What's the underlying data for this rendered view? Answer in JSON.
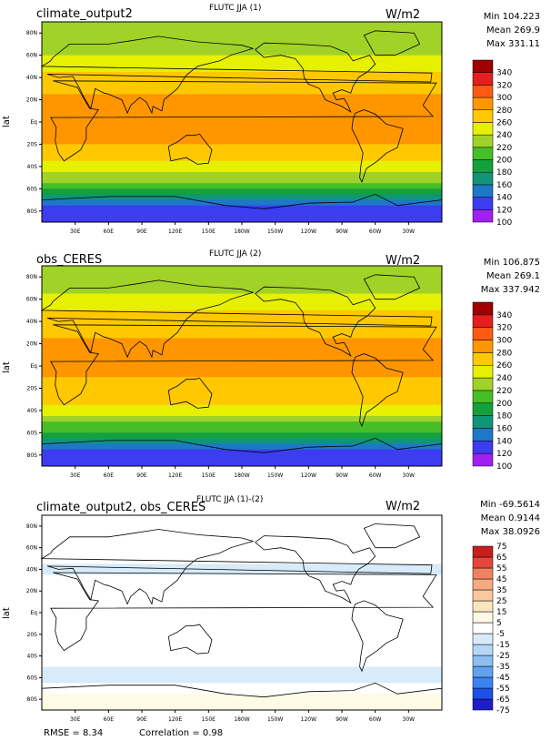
{
  "panels": [
    {
      "left_title": "climate_output2",
      "center_title": "FLUTC JJA (1)",
      "units": "W/m2",
      "stats": [
        "Min 104.223",
        "Mean 269.9",
        "Max 331.11"
      ],
      "ylabel": "lat"
    },
    {
      "left_title": "obs_CERES",
      "center_title": "FLUTC JJA (2)",
      "units": "W/m2",
      "stats": [
        "Min 106.875",
        "Mean 269.1",
        "Max 337.942"
      ],
      "ylabel": "lat"
    },
    {
      "left_title": "climate_output2, obs_CERES",
      "center_title": "FLUTC JJA (1)-(2)",
      "units": "W/m2",
      "stats": [
        "Min -69.5614",
        "Mean 0.9144",
        "Max 38.0926"
      ],
      "ylabel": "lat"
    }
  ],
  "footer": {
    "rmse": "RMSE = 8.34",
    "correlation": "Correlation = 0.98"
  },
  "chart_data": [
    {
      "type": "heatmap",
      "title": "FLUTC JJA (1)",
      "xlabel": "",
      "ylabel": "lat",
      "x_ticks": [
        "30E",
        "60E",
        "90E",
        "120E",
        "150E",
        "180W",
        "150W",
        "120W",
        "90W",
        "60W",
        "30W"
      ],
      "y_ticks": [
        "80N",
        "60N",
        "40N",
        "20N",
        "Eq",
        "20S",
        "40S",
        "60S",
        "80S"
      ],
      "colorbar_levels": [
        100,
        120,
        140,
        160,
        180,
        200,
        220,
        240,
        260,
        280,
        300,
        320,
        340
      ],
      "colorbar_colors": [
        "#a020f0",
        "#3c3cf0",
        "#1e78c8",
        "#0f9678",
        "#14a03c",
        "#46be28",
        "#a0d228",
        "#e6f000",
        "#ffc800",
        "#ff9600",
        "#ff5a14",
        "#e61e1e",
        "#a00000"
      ],
      "min": 104.223,
      "mean": 269.9,
      "max": 331.11,
      "lat_profile": [
        {
          "lat": 80,
          "value": 225
        },
        {
          "lat": 60,
          "value": 240
        },
        {
          "lat": 40,
          "value": 270
        },
        {
          "lat": 20,
          "value": 285
        },
        {
          "lat": 0,
          "value": 280
        },
        {
          "lat": -20,
          "value": 280
        },
        {
          "lat": -40,
          "value": 250
        },
        {
          "lat": -60,
          "value": 205
        },
        {
          "lat": -80,
          "value": 125
        }
      ]
    },
    {
      "type": "heatmap",
      "title": "FLUTC JJA (2)",
      "xlabel": "",
      "ylabel": "lat",
      "x_ticks": [
        "30E",
        "60E",
        "90E",
        "120E",
        "150E",
        "180W",
        "150W",
        "120W",
        "90W",
        "60W",
        "30W"
      ],
      "y_ticks": [
        "80N",
        "60N",
        "40N",
        "20N",
        "Eq",
        "20S",
        "40S",
        "60S",
        "80S"
      ],
      "colorbar_levels": [
        100,
        120,
        140,
        160,
        180,
        200,
        220,
        240,
        260,
        280,
        300,
        320,
        340
      ],
      "colorbar_colors": [
        "#a020f0",
        "#3c3cf0",
        "#1e78c8",
        "#0f9678",
        "#14a03c",
        "#46be28",
        "#a0d228",
        "#e6f000",
        "#ffc800",
        "#ff9600",
        "#ff5a14",
        "#e61e1e",
        "#a00000"
      ],
      "min": 106.875,
      "mean": 269.1,
      "max": 337.942,
      "lat_profile": [
        {
          "lat": 80,
          "value": 230
        },
        {
          "lat": 60,
          "value": 245
        },
        {
          "lat": 40,
          "value": 270
        },
        {
          "lat": 20,
          "value": 285
        },
        {
          "lat": 0,
          "value": 282
        },
        {
          "lat": -20,
          "value": 278
        },
        {
          "lat": -40,
          "value": 250
        },
        {
          "lat": -60,
          "value": 200
        },
        {
          "lat": -80,
          "value": 130
        }
      ]
    },
    {
      "type": "heatmap",
      "title": "FLUTC JJA (1)-(2)",
      "xlabel": "",
      "ylabel": "lat",
      "x_ticks": [
        "30E",
        "60E",
        "90E",
        "120E",
        "150E",
        "180W",
        "150W",
        "120W",
        "90W",
        "60W",
        "30W"
      ],
      "y_ticks": [
        "80N",
        "60N",
        "40N",
        "20N",
        "Eq",
        "20S",
        "40S",
        "60S",
        "80S"
      ],
      "colorbar_levels": [
        -75,
        -65,
        -55,
        -45,
        -35,
        -25,
        -15,
        -5,
        5,
        15,
        25,
        35,
        45,
        55,
        65,
        75
      ],
      "colorbar_colors": [
        "#1e1ec8",
        "#1e50e6",
        "#3c82f0",
        "#64a0f0",
        "#8cbef0",
        "#b4d7f5",
        "#d7ebfa",
        "#ffffff",
        "#fffae6",
        "#fae6be",
        "#fac8a0",
        "#f5aa82",
        "#f08264",
        "#e6463c",
        "#c81e1e"
      ],
      "min": -69.5614,
      "mean": 0.9144,
      "max": 38.0926,
      "lat_profile": [
        {
          "lat": 80,
          "value": 0
        },
        {
          "lat": 60,
          "value": 0
        },
        {
          "lat": 40,
          "value": -8
        },
        {
          "lat": 20,
          "value": 5
        },
        {
          "lat": 0,
          "value": 0
        },
        {
          "lat": -20,
          "value": 0
        },
        {
          "lat": -40,
          "value": 0
        },
        {
          "lat": -60,
          "value": -10
        },
        {
          "lat": -80,
          "value": 10
        }
      ]
    }
  ]
}
